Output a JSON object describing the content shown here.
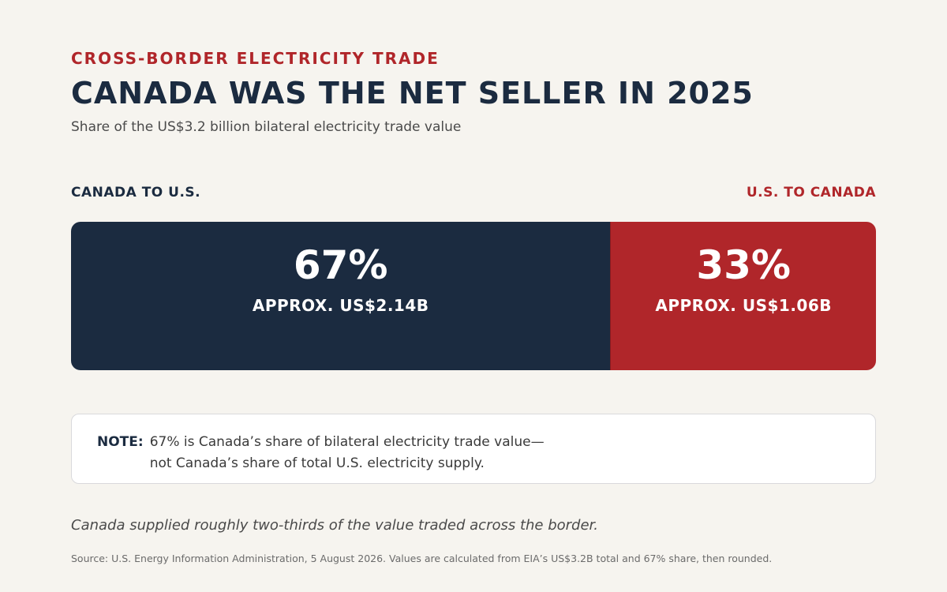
{
  "header": {
    "kicker": "CROSS-BORDER ELECTRICITY TRADE",
    "title": "CANADA WAS THE NET SELLER IN 2025",
    "subtitle": "Share of the US$3.2 billion bilateral electricity trade value"
  },
  "labels": {
    "left": "CANADA TO U.S.",
    "right": "U.S. TO CANADA"
  },
  "chart_data": {
    "type": "bar",
    "orientation": "horizontal-stacked-100",
    "categories": [
      "CANADA TO U.S.",
      "U.S. TO CANADA"
    ],
    "values": [
      67,
      33
    ],
    "series": [
      {
        "name": "CANADA TO U.S.",
        "share_pct": 67,
        "value_label": "67%",
        "amount_label": "APPROX. US$2.14B",
        "amount_usd_billion": 2.14,
        "color": "#1b2b40"
      },
      {
        "name": "U.S. TO CANADA",
        "share_pct": 33,
        "value_label": "33%",
        "amount_label": "APPROX. US$1.06B",
        "amount_usd_billion": 1.06,
        "color": "#b0262a"
      }
    ],
    "total_usd_billion": 3.2,
    "title": "CANADA WAS THE NET SELLER IN 2025"
  },
  "note": {
    "label": "NOTE:",
    "line1": "67% is Canada’s share of bilateral electricity trade value—",
    "line2": "not Canada’s share of total U.S. electricity supply."
  },
  "takeaway": "Canada supplied roughly two-thirds of the value traded across the border.",
  "source": "Source: U.S. Energy Information Administration, 5 August 2026. Values are calculated from EIA’s US$3.2B total and 67% share, then rounded.",
  "colors": {
    "navy": "#1b2b40",
    "red": "#b0262a",
    "background": "#f6f4ef"
  }
}
